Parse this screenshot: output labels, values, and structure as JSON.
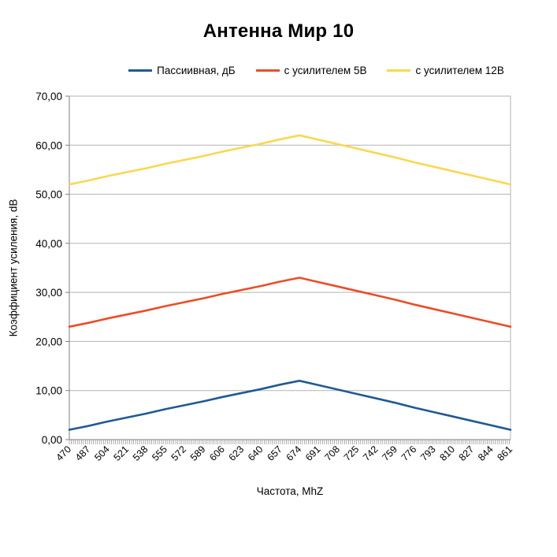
{
  "chart": {
    "title": "Антенна Мир 10",
    "x_axis": {
      "title": "Частота, MhZ"
    },
    "y_axis": {
      "title": "Коэффициент усиления, dB",
      "tick_labels": [
        "0,00",
        "10,00",
        "20,00",
        "30,00",
        "40,00",
        "50,00",
        "60,00",
        "70,00"
      ]
    },
    "legend": [
      {
        "label": "Пассиивная, дБ",
        "color": "#1f5a94"
      },
      {
        "label": "с усилителем 5В",
        "color": "#eb4d28"
      },
      {
        "label": "с усилителем 12В",
        "color": "#fad750"
      }
    ]
  },
  "chart_data": {
    "type": "line",
    "title": "Антенна Мир 10",
    "xlabel": "Частота, MhZ",
    "ylabel": "Коэффициент усиления, dB",
    "ylim": [
      0,
      70
    ],
    "y_tick_step": 10,
    "y_tick_labels": [
      "0,00",
      "10,00",
      "20,00",
      "30,00",
      "40,00",
      "50,00",
      "60,00",
      "70,00"
    ],
    "grid": true,
    "legend_position": "top",
    "categories": [
      470,
      487,
      504,
      521,
      538,
      555,
      572,
      589,
      606,
      623,
      640,
      657,
      674,
      691,
      708,
      725,
      742,
      759,
      776,
      793,
      810,
      827,
      844,
      861
    ],
    "peak_category": 674,
    "series": [
      {
        "name": "Пассиивная, дБ",
        "color": "#1f5a94",
        "key_points": {
          "470": 2,
          "674": 12,
          "861": 2
        },
        "values": [
          2.0,
          2.8,
          3.7,
          4.5,
          5.3,
          6.2,
          7.0,
          7.8,
          8.7,
          9.5,
          10.3,
          11.2,
          12.0,
          11.1,
          10.2,
          9.3,
          8.4,
          7.5,
          6.5,
          5.6,
          4.7,
          3.8,
          2.9,
          2.0
        ]
      },
      {
        "name": "с усилителем 5В",
        "color": "#eb4d28",
        "key_points": {
          "470": 23,
          "674": 33,
          "861": 23
        },
        "values": [
          23.0,
          23.8,
          24.7,
          25.5,
          26.3,
          27.2,
          28.0,
          28.8,
          29.7,
          30.5,
          31.3,
          32.2,
          33.0,
          32.1,
          31.2,
          30.3,
          29.4,
          28.5,
          27.5,
          26.6,
          25.7,
          24.8,
          23.9,
          23.0
        ]
      },
      {
        "name": "с усилителем 12В",
        "color": "#fad750",
        "key_points": {
          "470": 52,
          "674": 62,
          "861": 52
        },
        "values": [
          52.0,
          52.8,
          53.7,
          54.5,
          55.3,
          56.2,
          57.0,
          57.8,
          58.7,
          59.5,
          60.3,
          61.2,
          62.0,
          61.1,
          60.2,
          59.3,
          58.4,
          57.5,
          56.5,
          55.6,
          54.7,
          53.8,
          52.9,
          52.0
        ]
      }
    ]
  }
}
